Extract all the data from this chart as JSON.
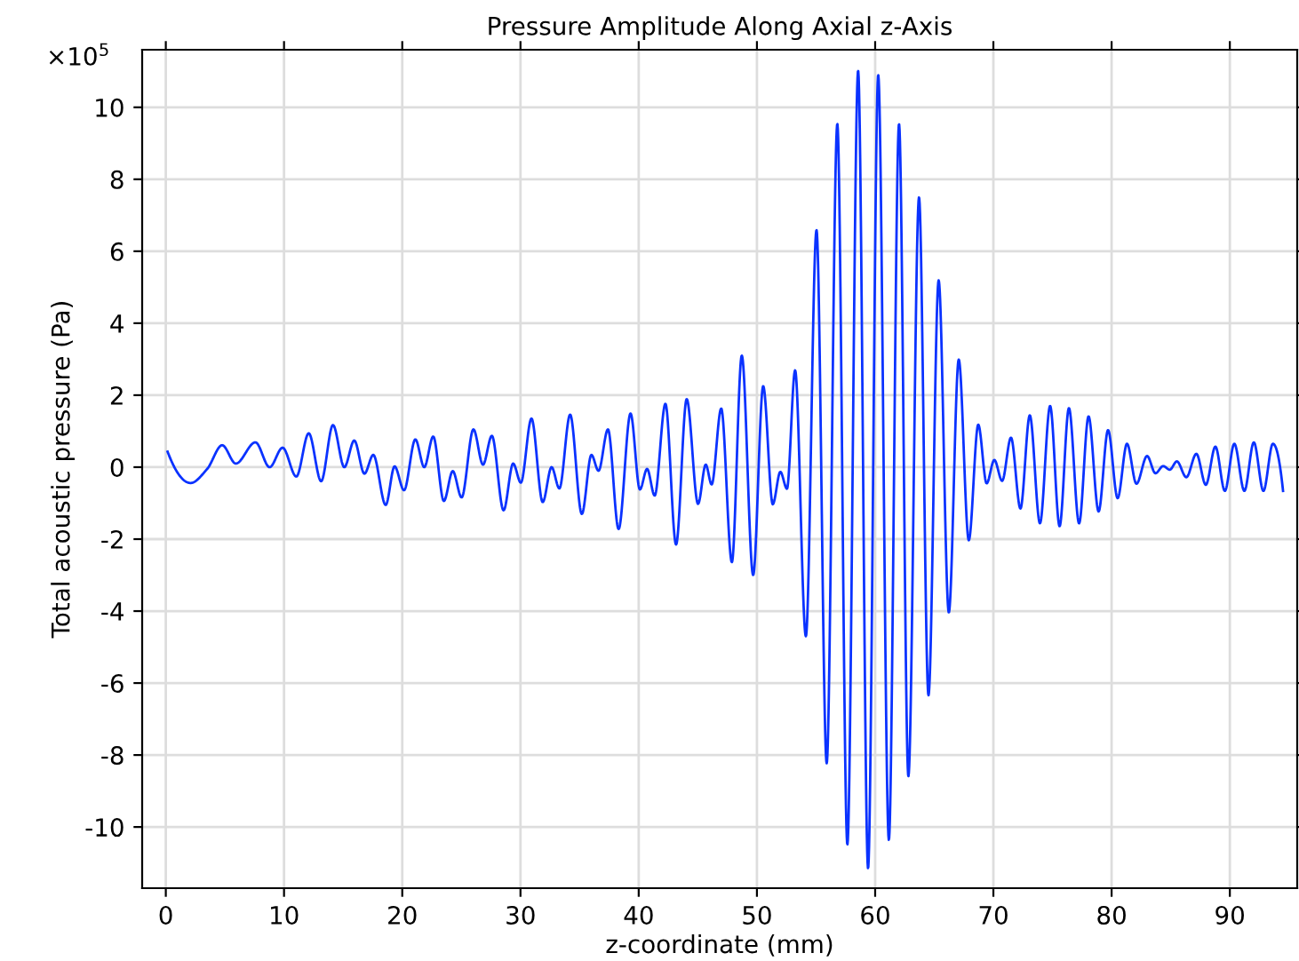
{
  "chart_data": {
    "type": "line",
    "title": "Pressure Amplitude Along Axial z-Axis",
    "xlabel": "z-coordinate (mm)",
    "ylabel": "Total acoustic pressure (Pa)",
    "annotations": [
      "×10$^{5}$"
    ],
    "xlim": [
      -2,
      95.7
    ],
    "ylim": [
      -11.7,
      11.6
    ],
    "xticks": [
      0,
      10,
      20,
      30,
      40,
      50,
      60,
      70,
      80,
      90
    ],
    "yticks": [
      -10,
      -8,
      -6,
      -4,
      -2,
      0,
      2,
      4,
      6,
      8,
      10
    ],
    "grid": true,
    "legend": false,
    "marker": "none",
    "line_style": "solid",
    "series": [
      {
        "color": "#0a32ff",
        "x": [
          0.15,
          2.1,
          3.5,
          4.77,
          5.92,
          7.58,
          8.78,
          9.88,
          11.04,
          12.09,
          13.14,
          14.14,
          15.1,
          15.94,
          16.8,
          17.55,
          18.6,
          19.35,
          20.15,
          21.11,
          21.86,
          22.62,
          23.52,
          24.27,
          25.02,
          26.02,
          26.83,
          27.58,
          28.57,
          29.38,
          30.03,
          30.93,
          31.88,
          32.63,
          33.29,
          34.2,
          35.19,
          36.0,
          36.6,
          37.4,
          38.3,
          39.31,
          40.1,
          40.71,
          41.35,
          42.26,
          43.16,
          44.06,
          45.02,
          45.67,
          46.17,
          46.98,
          47.88,
          48.72,
          49.68,
          50.53,
          51.34,
          51.98,
          52.54,
          53.23,
          54.14,
          55.04,
          55.9,
          56.8,
          57.65,
          58.56,
          59.4,
          60.26,
          61.16,
          62.02,
          62.81,
          63.71,
          64.51,
          65.37,
          66.23,
          67.07,
          67.92,
          68.72,
          69.43,
          70.08,
          70.74,
          71.49,
          72.29,
          73.08,
          73.94,
          74.8,
          75.6,
          76.39,
          77.25,
          78.05,
          78.9,
          79.7,
          80.51,
          81.3,
          82.1,
          83.0,
          83.71,
          84.36,
          84.92,
          85.52,
          86.32,
          87.17,
          87.97,
          88.78,
          89.58,
          90.38,
          91.23,
          92.03,
          92.84,
          93.64,
          94.5
        ],
        "values": [
          0.43,
          -0.44,
          -0.05,
          0.61,
          0.1,
          0.69,
          0,
          0.54,
          -0.26,
          0.94,
          -0.39,
          1.17,
          0,
          0.74,
          -0.18,
          0.34,
          -1.05,
          0.02,
          -0.64,
          0.77,
          0,
          0.85,
          -0.94,
          -0.11,
          -0.84,
          1.05,
          0.07,
          0.87,
          -1.2,
          0.1,
          -0.43,
          1.35,
          -0.97,
          0,
          -0.59,
          1.46,
          -1.3,
          0.34,
          -0.1,
          1.05,
          -1.72,
          1.49,
          -0.62,
          -0.05,
          -0.79,
          1.76,
          -2.15,
          1.89,
          -1.02,
          0.07,
          -0.48,
          1.63,
          -2.64,
          3.1,
          -3.0,
          2.25,
          -1.03,
          -0.13,
          -0.6,
          2.69,
          -4.7,
          6.59,
          -8.23,
          9.54,
          -10.49,
          11.02,
          -11.15,
          10.9,
          -10.36,
          9.54,
          -8.59,
          7.5,
          -6.34,
          5.19,
          -4.04,
          2.99,
          -2.03,
          1.18,
          -0.45,
          0.2,
          -0.38,
          0.82,
          -1.15,
          1.44,
          -1.56,
          1.7,
          -1.64,
          1.64,
          -1.56,
          1.41,
          -1.23,
          1.03,
          -0.86,
          0.65,
          -0.46,
          0.31,
          -0.17,
          0.03,
          -0.07,
          0.16,
          -0.28,
          0.37,
          -0.49,
          0.57,
          -0.66,
          0.65,
          -0.66,
          0.69,
          -0.66,
          0.65,
          -0.66
        ]
      }
    ]
  }
}
